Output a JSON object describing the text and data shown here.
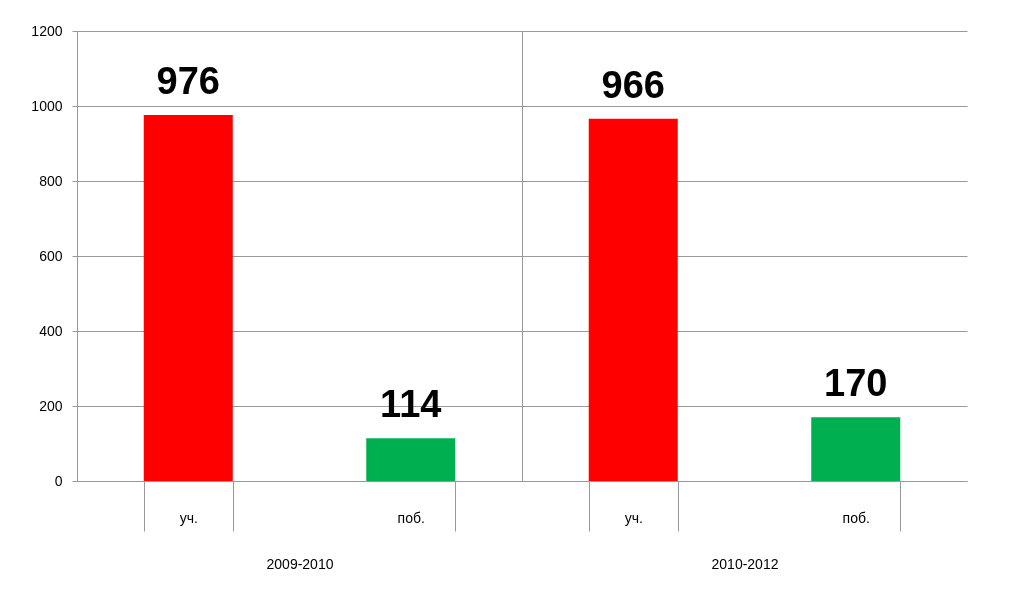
{
  "chart_data": [
    {
      "type": "bar",
      "xlabel": "2009-2010",
      "categories": [
        "уч.",
        "поб."
      ],
      "colors": [
        "#ff0000",
        "#00b050"
      ],
      "values": [
        976,
        114
      ],
      "ylim": [
        0,
        1200
      ],
      "yticks": [
        0,
        200,
        400,
        600,
        800,
        1000,
        1200
      ],
      "grid": "y",
      "data_labels": true,
      "legend": false
    },
    {
      "type": "bar",
      "xlabel": "2010-2012",
      "categories": [
        "уч.",
        "поб."
      ],
      "colors": [
        "#ff0000",
        "#00b050"
      ],
      "values": [
        966,
        170
      ],
      "ylim": [
        0,
        1200
      ],
      "yticks": [
        0,
        200,
        400,
        600,
        800,
        1000,
        1200
      ],
      "grid": "y",
      "data_labels": true,
      "legend": false,
      "tick_labels": "x"
    }
  ]
}
